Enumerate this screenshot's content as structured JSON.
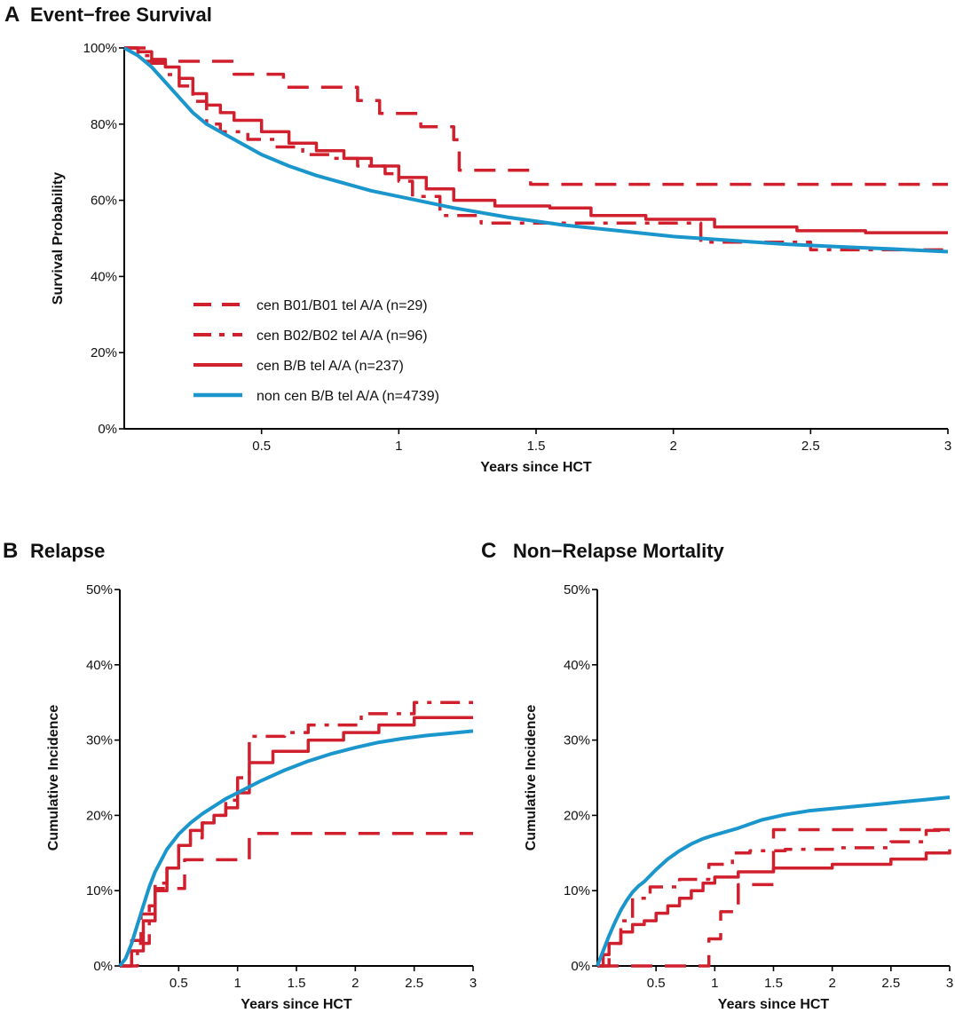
{
  "colors": {
    "red": "#d0202e",
    "blue": "#1a96cc",
    "axis": "#000000"
  },
  "legend_items": [
    {
      "label": "cen B01/B01 tel A/A (n=29)",
      "style": "dash",
      "color": "#d0202e"
    },
    {
      "label": "cen B02/B02 tel A/A (n=96)",
      "style": "dashdot",
      "color": "#d0202e"
    },
    {
      "label": "cen B/B tel A/A (n=237)",
      "style": "solid",
      "color": "#d0202e"
    },
    {
      "label": "non cen B/B tel A/A (n=4739)",
      "style": "solid",
      "color": "#1a96cc"
    }
  ],
  "chart_data": [
    {
      "id": "A",
      "type": "line",
      "letter": "A",
      "title": "Event-free Survival",
      "xlabel": "Years since HCT",
      "ylabel": "Survival Probability",
      "xlim": [
        0,
        3
      ],
      "ylim": [
        0,
        100
      ],
      "xticks": [
        {
          "value": 0.5,
          "label": "0.5"
        },
        {
          "value": 1,
          "label": "1"
        },
        {
          "value": 1.5,
          "label": "1.5"
        },
        {
          "value": 2,
          "label": "2"
        },
        {
          "value": 2.5,
          "label": "2.5"
        },
        {
          "value": 3,
          "label": "3"
        }
      ],
      "yticks": [
        {
          "value": 0,
          "label": "0%"
        },
        {
          "value": 20,
          "label": "20%"
        },
        {
          "value": 40,
          "label": "40%"
        },
        {
          "value": 60,
          "label": "60%"
        },
        {
          "value": 80,
          "label": "80%"
        },
        {
          "value": 100,
          "label": "100%"
        }
      ],
      "legend_position": "lower-left",
      "series": [
        {
          "name": "cen B01/B01 tel A/A (n=29)",
          "style": "dash",
          "step": true,
          "x": [
            0,
            0.08,
            0.4,
            0.58,
            0.85,
            0.93,
            1.08,
            1.2,
            1.22,
            1.48,
            3
          ],
          "y": [
            100,
            96.5,
            93.1,
            89.7,
            86.2,
            82.8,
            79.3,
            75.9,
            67.9,
            64.2,
            64.2
          ]
        },
        {
          "name": "cen B02/B02 tel A/A (n=96)",
          "style": "dashdot",
          "step": true,
          "x": [
            0,
            0.05,
            0.1,
            0.15,
            0.2,
            0.25,
            0.3,
            0.35,
            0.45,
            0.55,
            0.65,
            0.75,
            0.85,
            0.95,
            1.0,
            1.05,
            1.15,
            1.3,
            1.6,
            2.1,
            2.5,
            3
          ],
          "y": [
            100,
            98,
            96,
            93,
            90,
            86,
            80,
            78,
            76,
            74,
            72,
            71,
            69,
            67,
            65,
            61,
            56,
            54,
            54,
            49,
            47,
            47
          ]
        },
        {
          "name": "cen B/B tel A/A (n=237)",
          "style": "solid",
          "step": true,
          "x": [
            0,
            0.05,
            0.1,
            0.15,
            0.2,
            0.25,
            0.3,
            0.35,
            0.4,
            0.5,
            0.6,
            0.7,
            0.8,
            0.9,
            1.0,
            1.1,
            1.2,
            1.35,
            1.55,
            1.7,
            1.9,
            2.15,
            2.45,
            2.7,
            3
          ],
          "y": [
            100,
            99,
            97,
            95,
            92,
            88,
            85,
            83,
            81,
            78,
            75,
            73,
            71,
            69,
            66,
            63,
            60,
            58.5,
            58,
            56,
            55,
            53,
            52,
            51.5,
            51.5
          ]
        },
        {
          "name": "non cen B/B tel A/A (n=4739)",
          "style": "solid",
          "step": false,
          "x": [
            0,
            0.05,
            0.1,
            0.15,
            0.2,
            0.25,
            0.3,
            0.4,
            0.5,
            0.6,
            0.7,
            0.8,
            0.9,
            1.0,
            1.2,
            1.4,
            1.6,
            1.8,
            2.0,
            2.2,
            2.4,
            2.6,
            2.8,
            3.0
          ],
          "y": [
            100,
            98,
            95,
            91,
            87,
            83,
            80,
            76,
            72,
            69,
            66.5,
            64.5,
            62.5,
            61,
            58,
            55.5,
            53.5,
            52,
            50.5,
            49.5,
            48.5,
            47.8,
            47.2,
            46.5
          ]
        }
      ]
    },
    {
      "id": "B",
      "type": "line",
      "letter": "B",
      "title": "Relapse",
      "xlabel": "Years since HCT",
      "ylabel": "Cumulative Incidence",
      "xlim": [
        0,
        3
      ],
      "ylim": [
        0,
        50
      ],
      "xticks": [
        {
          "value": 0.5,
          "label": "0.5"
        },
        {
          "value": 1,
          "label": "1"
        },
        {
          "value": 1.5,
          "label": "1.5"
        },
        {
          "value": 2,
          "label": "2"
        },
        {
          "value": 2.5,
          "label": "2.5"
        },
        {
          "value": 3,
          "label": "3"
        }
      ],
      "yticks": [
        {
          "value": 0,
          "label": "0%"
        },
        {
          "value": 10,
          "label": "10%"
        },
        {
          "value": 20,
          "label": "20%"
        },
        {
          "value": 30,
          "label": "30%"
        },
        {
          "value": 40,
          "label": "40%"
        },
        {
          "value": 50,
          "label": "50%"
        }
      ],
      "series": [
        {
          "name": "cen B01/B01 tel A/A (n=29)",
          "style": "dash",
          "step": true,
          "x": [
            0,
            0.1,
            0.18,
            0.3,
            0.55,
            1.1,
            3
          ],
          "y": [
            0,
            3.4,
            6.9,
            10.3,
            14.1,
            17.6,
            17.6
          ]
        },
        {
          "name": "cen B02/B02 tel A/A (n=96)",
          "style": "dashdot",
          "step": true,
          "x": [
            0,
            0.15,
            0.25,
            0.3,
            0.4,
            0.5,
            0.6,
            0.7,
            0.8,
            0.9,
            1.0,
            1.1,
            1.4,
            1.6,
            2.05,
            2.5,
            3
          ],
          "y": [
            0,
            3,
            8,
            11,
            13,
            16,
            17,
            19,
            20,
            22,
            25,
            30.5,
            31,
            32,
            33.5,
            35,
            35
          ]
        },
        {
          "name": "cen B/B tel A/A (n=237)",
          "style": "solid",
          "step": true,
          "x": [
            0,
            0.1,
            0.2,
            0.3,
            0.4,
            0.5,
            0.6,
            0.7,
            0.8,
            0.9,
            1.0,
            1.1,
            1.3,
            1.6,
            1.9,
            2.2,
            2.5,
            3
          ],
          "y": [
            0,
            2,
            6,
            10,
            13,
            16,
            18,
            19,
            20,
            21,
            23,
            27,
            28.5,
            30,
            31,
            32,
            33,
            33
          ]
        },
        {
          "name": "non cen B/B tel A/A (n=4739)",
          "style": "solid",
          "step": false,
          "x": [
            0,
            0.05,
            0.1,
            0.15,
            0.2,
            0.25,
            0.3,
            0.4,
            0.5,
            0.6,
            0.7,
            0.8,
            0.9,
            1.0,
            1.2,
            1.4,
            1.6,
            1.8,
            2.0,
            2.2,
            2.4,
            2.6,
            2.8,
            3.0
          ],
          "y": [
            0,
            1,
            3,
            5.5,
            8,
            10.5,
            12.5,
            15.5,
            17.5,
            19,
            20.2,
            21.2,
            22.2,
            23,
            24.6,
            26,
            27.2,
            28.2,
            29,
            29.7,
            30.2,
            30.6,
            30.9,
            31.2
          ]
        }
      ]
    },
    {
      "id": "C",
      "type": "line",
      "letter": "C",
      "title": "Non-Relapse Mortality",
      "xlabel": "Years since HCT",
      "ylabel": "Cumulative Incidence",
      "xlim": [
        0,
        3
      ],
      "ylim": [
        0,
        50
      ],
      "xticks": [
        {
          "value": 0.5,
          "label": "0.5"
        },
        {
          "value": 1,
          "label": "1"
        },
        {
          "value": 1.5,
          "label": "1.5"
        },
        {
          "value": 2,
          "label": "2"
        },
        {
          "value": 2.5,
          "label": "2.5"
        },
        {
          "value": 3,
          "label": "3"
        }
      ],
      "yticks": [
        {
          "value": 0,
          "label": "0%"
        },
        {
          "value": 10,
          "label": "10%"
        },
        {
          "value": 20,
          "label": "20%"
        },
        {
          "value": 30,
          "label": "30%"
        },
        {
          "value": 40,
          "label": "40%"
        },
        {
          "value": 50,
          "label": "50%"
        }
      ],
      "series": [
        {
          "name": "cen B01/B01 tel A/A (n=29)",
          "style": "dash",
          "step": true,
          "x": [
            0,
            0.7,
            0.95,
            1.05,
            1.2,
            1.5,
            3
          ],
          "y": [
            0,
            0,
            3.6,
            7.2,
            10.8,
            18.1,
            18.1
          ]
        },
        {
          "name": "cen B02/B02 tel A/A (n=96)",
          "style": "dashdot",
          "step": true,
          "x": [
            0,
            0.1,
            0.2,
            0.3,
            0.45,
            0.7,
            0.95,
            1.15,
            1.3,
            1.6,
            2.05,
            2.5,
            2.8,
            3
          ],
          "y": [
            0,
            3,
            6,
            9,
            10.5,
            11.5,
            13.5,
            15,
            15.3,
            15.5,
            15.7,
            16.5,
            18,
            18
          ]
        },
        {
          "name": "cen B/B tel A/A (n=237)",
          "style": "solid",
          "step": true,
          "x": [
            0,
            0.05,
            0.1,
            0.2,
            0.3,
            0.4,
            0.5,
            0.6,
            0.7,
            0.8,
            0.9,
            1.0,
            1.2,
            1.5,
            2.0,
            2.5,
            2.8,
            3
          ],
          "y": [
            0,
            1.5,
            3,
            4.5,
            5.5,
            6,
            7,
            8,
            9,
            10,
            11,
            11.8,
            12.5,
            13,
            13.5,
            14.2,
            15,
            15.5
          ]
        },
        {
          "name": "non cen B/B tel A/A (n=4739)",
          "style": "solid",
          "step": false,
          "x": [
            0,
            0.05,
            0.1,
            0.15,
            0.2,
            0.25,
            0.3,
            0.35,
            0.4,
            0.5,
            0.6,
            0.7,
            0.8,
            0.9,
            1.0,
            1.2,
            1.4,
            1.6,
            1.8,
            2.0,
            2.2,
            2.4,
            2.6,
            2.8,
            3.0
          ],
          "y": [
            0,
            2,
            4,
            5.8,
            7.4,
            8.7,
            9.8,
            10.6,
            11.2,
            12.8,
            14.2,
            15.3,
            16.2,
            16.9,
            17.4,
            18.3,
            19.4,
            20.1,
            20.6,
            20.9,
            21.2,
            21.5,
            21.8,
            22.1,
            22.4
          ]
        }
      ]
    }
  ]
}
